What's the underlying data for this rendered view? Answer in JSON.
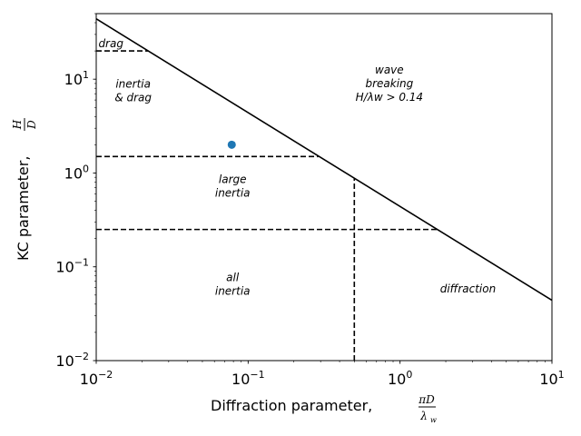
{
  "chart_data": {
    "type": "line",
    "x_scale": "log",
    "y_scale": "log",
    "xlim": [
      0.01,
      10
    ],
    "ylim": [
      0.01,
      50
    ],
    "grid": false,
    "legend": "none",
    "xlabel": "Diffraction parameter, πD/λw",
    "ylabel": "KC parameter, H/D",
    "x_ticks": [
      {
        "value": 0.01,
        "base": "10",
        "exp": "−2"
      },
      {
        "value": 0.1,
        "base": "10",
        "exp": "−1"
      },
      {
        "value": 1,
        "base": "10",
        "exp": "0"
      },
      {
        "value": 10,
        "base": "10",
        "exp": "1"
      }
    ],
    "y_ticks": [
      {
        "value": 0.01,
        "base": "10",
        "exp": "−2"
      },
      {
        "value": 0.1,
        "base": "10",
        "exp": "−1"
      },
      {
        "value": 1,
        "base": "10",
        "exp": "0"
      },
      {
        "value": 10,
        "base": "10",
        "exp": "1"
      }
    ],
    "series": [
      {
        "style": "solid",
        "color": "#000000",
        "x": [
          0.01,
          10
        ],
        "y": [
          44,
          0.044
        ]
      },
      {
        "style": "dashed",
        "color": "#000000",
        "x": [
          0.01,
          0.022
        ],
        "y": [
          20,
          20
        ]
      },
      {
        "style": "dashed",
        "color": "#000000",
        "x": [
          0.01,
          0.29
        ],
        "y": [
          1.5,
          1.5
        ]
      },
      {
        "style": "dashed",
        "color": "#000000",
        "x": [
          0.01,
          1.75
        ],
        "y": [
          0.25,
          0.25
        ]
      },
      {
        "style": "dashed",
        "color": "#000000",
        "x": [
          0.5,
          0.5
        ],
        "y": [
          0.01,
          0.88
        ]
      }
    ],
    "points": [
      {
        "x": 0.078,
        "y": 2.0,
        "color": "#1f77b4"
      }
    ],
    "annotations": [
      {
        "lines": [
          "drag"
        ],
        "x": 0.0125,
        "y": 24
      },
      {
        "lines": [
          "inertia",
          "& drag"
        ],
        "x": 0.0175,
        "y": 7.5
      },
      {
        "lines": [
          "wave",
          "breaking",
          "H/λw > 0.14"
        ],
        "x": 0.85,
        "y": 9
      },
      {
        "lines": [
          "large",
          "inertia"
        ],
        "x": 0.079,
        "y": 0.72
      },
      {
        "lines": [
          "all",
          "inertia"
        ],
        "x": 0.079,
        "y": 0.065
      },
      {
        "lines": [
          "diffraction"
        ],
        "x": 2.8,
        "y": 0.058
      }
    ]
  }
}
